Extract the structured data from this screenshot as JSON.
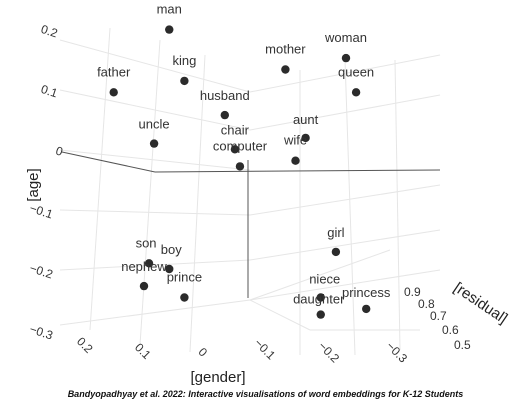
{
  "chart_data": {
    "type": "scatter",
    "title": "",
    "xlabel": "[gender]",
    "ylabel": "[age]",
    "zlabel": "[residual]",
    "x_ticks": [
      "0.2",
      "0.1",
      "0",
      "−0.1",
      "−0.2",
      "−0.3"
    ],
    "y_ticks": [
      "0.2",
      "0.1",
      "0",
      "−0.1",
      "−0.2",
      "−0.3"
    ],
    "z_ticks": [
      "0.9",
      "0.8",
      "0.7",
      "0.6",
      "0.5"
    ],
    "grid": true,
    "point_color": "#2b2b2b",
    "points": [
      {
        "word": "man",
        "gender": 0.15,
        "age": 0.22
      },
      {
        "word": "woman",
        "gender": -0.2,
        "age": 0.17
      },
      {
        "word": "mother",
        "gender": -0.08,
        "age": 0.15
      },
      {
        "word": "queen",
        "gender": -0.22,
        "age": 0.11
      },
      {
        "word": "father",
        "gender": 0.26,
        "age": 0.11
      },
      {
        "word": "king",
        "gender": 0.12,
        "age": 0.13
      },
      {
        "word": "husband",
        "gender": 0.04,
        "age": 0.07
      },
      {
        "word": "aunt",
        "gender": -0.12,
        "age": 0.03
      },
      {
        "word": "uncle",
        "gender": 0.18,
        "age": 0.02
      },
      {
        "word": "chair",
        "gender": 0.02,
        "age": 0.01
      },
      {
        "word": "wife",
        "gender": -0.1,
        "age": -0.01
      },
      {
        "word": "computer",
        "gender": 0.01,
        "age": -0.02
      },
      {
        "word": "son",
        "gender": 0.19,
        "age": -0.19
      },
      {
        "word": "boy",
        "gender": 0.15,
        "age": -0.2
      },
      {
        "word": "nephew",
        "gender": 0.2,
        "age": -0.23
      },
      {
        "word": "prince",
        "gender": 0.12,
        "age": -0.25
      },
      {
        "word": "girl",
        "gender": -0.18,
        "age": -0.17
      },
      {
        "word": "niece",
        "gender": -0.15,
        "age": -0.25
      },
      {
        "word": "daughter",
        "gender": -0.15,
        "age": -0.28
      },
      {
        "word": "princess",
        "gender": -0.24,
        "age": -0.27
      }
    ]
  },
  "caption": "Bandyopadhyay et al. 2022: Interactive visualisations of word embeddings for K-12 Students"
}
